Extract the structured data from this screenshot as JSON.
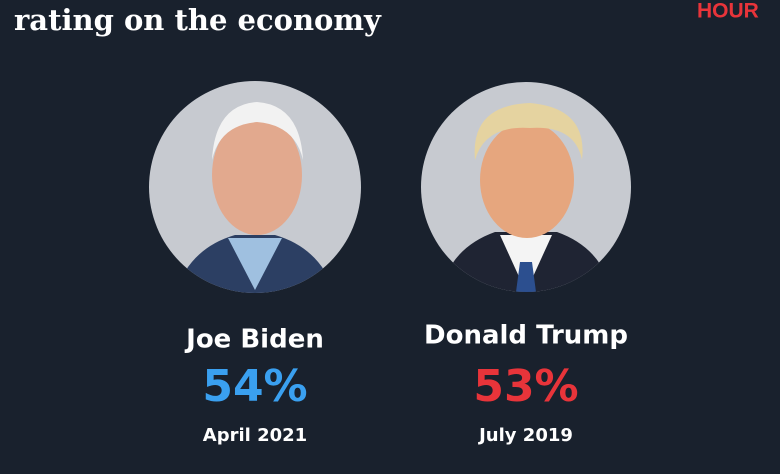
{
  "header": {
    "title": "rating on the economy",
    "logo": "HOUR"
  },
  "people": [
    {
      "name": "Joe Biden",
      "value": "54%",
      "date": "April 2021",
      "color": "#3aa0f0"
    },
    {
      "name": "Donald Trump",
      "value": "53%",
      "date": "July 2019",
      "color": "#e8343a"
    }
  ]
}
